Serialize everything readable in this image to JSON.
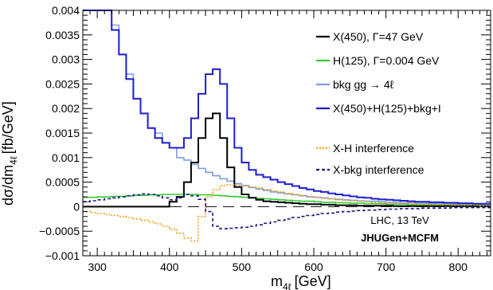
{
  "chart_data": {
    "type": "line",
    "xlabel": "m",
    "xlabel_sub": "4ℓ",
    "xlabel_unit": "[GeV]",
    "ylabel": "dσ/dm",
    "ylabel_sub": "4ℓ",
    "ylabel_unit": "[fb/GeV]",
    "xlim": [
      280,
      845
    ],
    "ylim": [
      -0.001,
      0.004
    ],
    "x_ticks": [
      300,
      400,
      500,
      600,
      700,
      800
    ],
    "y_ticks": [
      -0.001,
      -0.0005,
      0,
      0.0005,
      0.001,
      0.0015,
      0.002,
      0.0025,
      0.003,
      0.0035,
      0.004
    ],
    "x_tick_labels": [
      "300",
      "400",
      "500",
      "600",
      "700",
      "800"
    ],
    "y_tick_labels": [
      "−0.001",
      "−0.0005",
      "0",
      "0.0005",
      "0.001",
      "0.0015",
      "0.002",
      "0.0025",
      "0.003",
      "0.0035",
      "0.004"
    ],
    "grid": false,
    "legend_position": "top-right",
    "annotations": [
      "LHC, 13 TeV",
      "JHUGen+MCFM"
    ],
    "bin_width": 10,
    "x": [
      280,
      290,
      300,
      310,
      320,
      330,
      340,
      350,
      360,
      370,
      380,
      390,
      400,
      410,
      420,
      430,
      440,
      450,
      460,
      470,
      480,
      490,
      500,
      510,
      520,
      530,
      540,
      550,
      560,
      570,
      580,
      590,
      600,
      610,
      620,
      630,
      640,
      650,
      660,
      670,
      680,
      690,
      700,
      710,
      720,
      730,
      740,
      750,
      760,
      770,
      780,
      790,
      800,
      810,
      820,
      830,
      840
    ],
    "series": [
      {
        "name": "X(450), Γ=47 GeV",
        "color": "#000000",
        "style": "solid",
        "values": [
          0,
          0,
          0,
          0,
          0,
          0,
          0,
          0,
          0,
          0,
          0,
          0,
          0.0001,
          0.0002,
          0.0005,
          0.0009,
          0.0014,
          0.0018,
          0.0019,
          0.0014,
          0.0008,
          0.0004,
          0.00025,
          0.00018,
          0.00014,
          0.00011,
          0.0001,
          9e-05,
          8e-05,
          7e-05,
          6e-05,
          5e-05,
          5e-05,
          4e-05,
          4e-05,
          3e-05,
          3e-05,
          3e-05,
          2e-05,
          2e-05,
          2e-05,
          2e-05,
          2e-05,
          1e-05,
          1e-05,
          1e-05,
          1e-05,
          1e-05,
          1e-05,
          1e-05,
          1e-05,
          1e-05,
          1e-05,
          1e-05,
          1e-05,
          1e-05,
          1e-05
        ]
      },
      {
        "name": "H(125), Γ=0.004 GeV",
        "color": "#33cc33",
        "style": "solid",
        "values": [
          0.00019,
          0.00019,
          0.0002,
          0.0002,
          0.00021,
          0.00021,
          0.00022,
          0.00023,
          0.00023,
          0.00024,
          0.00024,
          0.00025,
          0.00025,
          0.00025,
          0.00025,
          0.00025,
          0.00024,
          0.00024,
          0.00023,
          0.00022,
          0.00021,
          0.0002,
          0.00019,
          0.00018,
          0.00017,
          0.00016,
          0.00015,
          0.00014,
          0.00013,
          0.00012,
          0.00011,
          0.00011,
          0.0001,
          9e-05,
          9e-05,
          8e-05,
          8e-05,
          7e-05,
          7e-05,
          6e-05,
          6e-05,
          6e-05,
          5e-05,
          5e-05,
          5e-05,
          4e-05,
          4e-05,
          4e-05,
          4e-05,
          3e-05,
          3e-05,
          3e-05,
          3e-05,
          3e-05,
          3e-05,
          2e-05,
          2e-05
        ]
      },
      {
        "name": "bkg gg → 4ℓ",
        "color": "#7f9fdf",
        "style": "solid",
        "values": [
          0.004,
          0.004,
          0.004,
          0.004,
          0.0037,
          0.0031,
          0.0027,
          0.0022,
          0.0019,
          0.0016,
          0.0015,
          0.0013,
          0.0012,
          0.001,
          0.00095,
          0.00086,
          0.00078,
          0.0007,
          0.00063,
          0.00057,
          0.00052,
          0.00047,
          0.00043,
          0.00039,
          0.00036,
          0.00033,
          0.0003,
          0.00028,
          0.00026,
          0.00024,
          0.00022,
          0.0002,
          0.00019,
          0.00018,
          0.00016,
          0.00015,
          0.00014,
          0.00013,
          0.00012,
          0.00011,
          0.00011,
          0.0001,
          9e-05,
          9e-05,
          8e-05,
          8e-05,
          7e-05,
          7e-05,
          6e-05,
          6e-05,
          6e-05,
          5e-05,
          5e-05,
          5e-05,
          5e-05,
          4e-05,
          4e-05
        ]
      },
      {
        "name": "X(450)+H(125)+bkg+I",
        "color": "#1f1fcc",
        "style": "solid",
        "values": [
          0.004,
          0.004,
          0.004,
          0.004,
          0.0036,
          0.0031,
          0.0026,
          0.0022,
          0.0019,
          0.0016,
          0.0014,
          0.0013,
          0.0012,
          0.0012,
          0.0014,
          0.0018,
          0.0023,
          0.0027,
          0.0028,
          0.0025,
          0.0018,
          0.0012,
          0.0009,
          0.00075,
          0.00065,
          0.0006,
          0.00055,
          0.0005,
          0.00046,
          0.00042,
          0.00038,
          0.00035,
          0.00032,
          0.0003,
          0.00027,
          0.00025,
          0.00023,
          0.00021,
          0.00019,
          0.00018,
          0.00016,
          0.00015,
          0.00014,
          0.00013,
          0.00012,
          0.00011,
          0.0001,
          0.0001,
          9e-05,
          9e-05,
          8e-05,
          8e-05,
          7e-05,
          7e-05,
          6e-05,
          6e-05,
          6e-05
        ]
      },
      {
        "name": "X-H interference",
        "color": "#f0a020",
        "style": "dotted",
        "values": [
          -0.0001,
          -0.00012,
          -0.00014,
          -0.00016,
          -0.00018,
          -0.0002,
          -0.00022,
          -0.00025,
          -0.00028,
          -0.00031,
          -0.00035,
          -0.0004,
          -0.00046,
          -0.00054,
          -0.00064,
          -0.0007,
          -0.0002,
          0.0002,
          0.00035,
          0.00043,
          0.00045,
          0.00044,
          0.00042,
          0.0004,
          0.00038,
          0.00035,
          0.00032,
          0.0003,
          0.00027,
          0.00025,
          0.00023,
          0.00021,
          0.00019,
          0.00017,
          0.00016,
          0.00014,
          0.00013,
          0.00012,
          0.00011,
          0.0001,
          9e-05,
          8e-05,
          7e-05,
          7e-05,
          6e-05,
          6e-05,
          5e-05,
          5e-05,
          4e-05,
          4e-05,
          4e-05,
          3e-05,
          3e-05,
          3e-05,
          3e-05,
          2e-05,
          2e-05
        ]
      },
      {
        "name": "X-bkg interference",
        "color": "#1a1a80",
        "style": "dashed",
        "values": [
          0.0001,
          0.00012,
          0.00014,
          0.00016,
          0.00018,
          0.0002,
          0.00022,
          0.00024,
          0.00026,
          0.00025,
          0.00022,
          0.00018,
          0.00014,
          0.00018,
          0.00025,
          0.00022,
          0.00015,
          -0.0001,
          -0.0004,
          -0.00045,
          -0.00044,
          -0.00043,
          -0.00042,
          -0.0004,
          -0.00037,
          -0.00034,
          -0.00031,
          -0.00028,
          -0.00025,
          -0.00022,
          -0.0002,
          -0.00018,
          -0.00016,
          -0.00014,
          -0.00013,
          -0.00011,
          -0.0001,
          -9e-05,
          -8e-05,
          -7e-05,
          -7e-05,
          -6e-05,
          -5e-05,
          -5e-05,
          -4e-05,
          -4e-05,
          -4e-05,
          -3e-05,
          -3e-05,
          -3e-05,
          -3e-05,
          -2e-05,
          -2e-05,
          -2e-05,
          -2e-05,
          -2e-05,
          -2e-05
        ]
      }
    ]
  }
}
